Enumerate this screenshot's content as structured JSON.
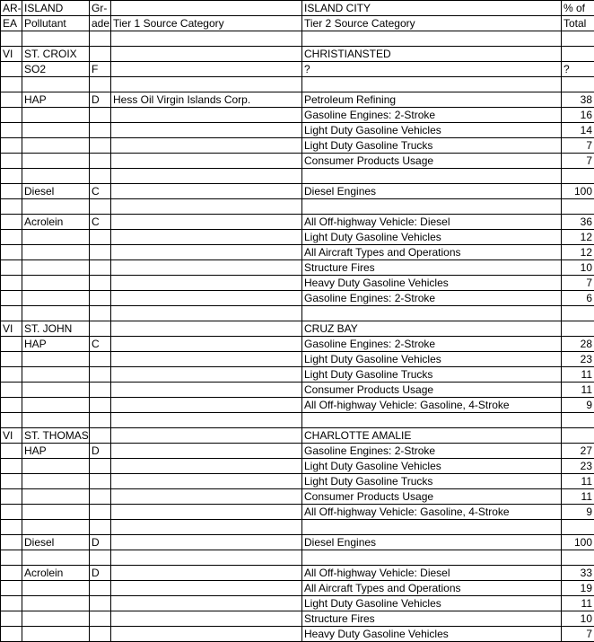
{
  "header1": {
    "ea": "AR-",
    "island": "ISLAND",
    "grade": "Gr-",
    "tier1": "",
    "tier2": "ISLAND CITY",
    "pct": "% of"
  },
  "header2": {
    "ea": "EA",
    "island": "Pollutant",
    "grade": "ade",
    "tier1": "Tier 1 Source Category",
    "tier2": "Tier 2 Source Category",
    "pct": "Total"
  },
  "rows": [
    {
      "ea": "",
      "isl": "",
      "gr": "",
      "t1": "",
      "t2": "",
      "p": ""
    },
    {
      "ea": "VI",
      "isl": "ST. CROIX",
      "gr": "",
      "t1": "",
      "t2": "CHRISTIANSTED",
      "p": ""
    },
    {
      "ea": "",
      "isl": "SO2",
      "gr": "F",
      "t1": "",
      "t2": "?",
      "p": "?",
      "pleft": true
    },
    {
      "ea": "",
      "isl": "",
      "gr": "",
      "t1": "",
      "t2": "",
      "p": ""
    },
    {
      "ea": "",
      "isl": "HAP",
      "gr": "D",
      "t1": "Hess Oil Virgin Islands Corp.",
      "t2": "Petroleum Refining",
      "p": "38"
    },
    {
      "ea": "",
      "isl": "",
      "gr": "",
      "t1": "",
      "t2": "Gasoline Engines: 2-Stroke",
      "p": "16"
    },
    {
      "ea": "",
      "isl": "",
      "gr": "",
      "t1": "",
      "t2": "Light Duty Gasoline Vehicles",
      "p": "14"
    },
    {
      "ea": "",
      "isl": "",
      "gr": "",
      "t1": "",
      "t2": "Light Duty Gasoline Trucks",
      "p": "7"
    },
    {
      "ea": "",
      "isl": "",
      "gr": "",
      "t1": "",
      "t2": "Consumer Products Usage",
      "p": "7"
    },
    {
      "ea": "",
      "isl": "",
      "gr": "",
      "t1": "",
      "t2": "",
      "p": ""
    },
    {
      "ea": "",
      "isl": "Diesel",
      "gr": "C",
      "t1": "",
      "t2": "Diesel Engines",
      "p": "100"
    },
    {
      "ea": "",
      "isl": "",
      "gr": "",
      "t1": "",
      "t2": "",
      "p": ""
    },
    {
      "ea": "",
      "isl": "Acrolein",
      "gr": "C",
      "t1": "",
      "t2": "All Off-highway Vehicle: Diesel",
      "p": "36"
    },
    {
      "ea": "",
      "isl": "",
      "gr": "",
      "t1": "",
      "t2": "Light Duty Gasoline Vehicles",
      "p": "12"
    },
    {
      "ea": "",
      "isl": "",
      "gr": "",
      "t1": "",
      "t2": "All Aircraft Types and Operations",
      "p": "12"
    },
    {
      "ea": "",
      "isl": "",
      "gr": "",
      "t1": "",
      "t2": "Structure Fires",
      "p": "10"
    },
    {
      "ea": "",
      "isl": "",
      "gr": "",
      "t1": "",
      "t2": "Heavy Duty Gasoline Vehicles",
      "p": "7"
    },
    {
      "ea": "",
      "isl": "",
      "gr": "",
      "t1": "",
      "t2": "Gasoline Engines: 2-Stroke",
      "p": "6"
    },
    {
      "ea": "",
      "isl": "",
      "gr": "",
      "t1": "",
      "t2": "",
      "p": ""
    },
    {
      "ea": "VI",
      "isl": "ST. JOHN",
      "gr": "",
      "t1": "",
      "t2": "CRUZ BAY",
      "p": ""
    },
    {
      "ea": "",
      "isl": "HAP",
      "gr": "C",
      "t1": "",
      "t2": "Gasoline Engines: 2-Stroke",
      "p": "28"
    },
    {
      "ea": "",
      "isl": "",
      "gr": "",
      "t1": "",
      "t2": "Light Duty Gasoline Vehicles",
      "p": "23"
    },
    {
      "ea": "",
      "isl": "",
      "gr": "",
      "t1": "",
      "t2": "Light Duty Gasoline Trucks",
      "p": "11"
    },
    {
      "ea": "",
      "isl": "",
      "gr": "",
      "t1": "",
      "t2": "Consumer Products Usage",
      "p": "11"
    },
    {
      "ea": "",
      "isl": "",
      "gr": "",
      "t1": "",
      "t2": "All Off-highway Vehicle: Gasoline, 4-Stroke",
      "p": "9"
    },
    {
      "ea": "",
      "isl": "",
      "gr": "",
      "t1": "",
      "t2": "",
      "p": ""
    },
    {
      "ea": "VI",
      "isl": "ST. THOMAS",
      "gr": "",
      "t1": "",
      "t2": "CHARLOTTE AMALIE",
      "p": ""
    },
    {
      "ea": "",
      "isl": "HAP",
      "gr": "D",
      "t1": "",
      "t2": "Gasoline Engines: 2-Stroke",
      "p": "27"
    },
    {
      "ea": "",
      "isl": "",
      "gr": "",
      "t1": "",
      "t2": "Light Duty Gasoline Vehicles",
      "p": "23"
    },
    {
      "ea": "",
      "isl": "",
      "gr": "",
      "t1": "",
      "t2": "Light Duty Gasoline Trucks",
      "p": "11"
    },
    {
      "ea": "",
      "isl": "",
      "gr": "",
      "t1": "",
      "t2": "Consumer Products Usage",
      "p": "11"
    },
    {
      "ea": "",
      "isl": "",
      "gr": "",
      "t1": "",
      "t2": "All Off-highway Vehicle: Gasoline, 4-Stroke",
      "p": "9"
    },
    {
      "ea": "",
      "isl": "",
      "gr": "",
      "t1": "",
      "t2": "",
      "p": ""
    },
    {
      "ea": "",
      "isl": "Diesel",
      "gr": "D",
      "t1": "",
      "t2": "Diesel Engines",
      "p": "100"
    },
    {
      "ea": "",
      "isl": "",
      "gr": "",
      "t1": "",
      "t2": "",
      "p": ""
    },
    {
      "ea": "",
      "isl": "Acrolein",
      "gr": "D",
      "t1": "",
      "t2": "All Off-highway Vehicle: Diesel",
      "p": "33"
    },
    {
      "ea": "",
      "isl": "",
      "gr": "",
      "t1": "",
      "t2": "All Aircraft Types and Operations",
      "p": "19"
    },
    {
      "ea": "",
      "isl": "",
      "gr": "",
      "t1": "",
      "t2": "Light Duty Gasoline Vehicles",
      "p": "11"
    },
    {
      "ea": "",
      "isl": "",
      "gr": "",
      "t1": "",
      "t2": "Structure Fires",
      "p": "10"
    },
    {
      "ea": "",
      "isl": "",
      "gr": "",
      "t1": "",
      "t2": "Heavy Duty Gasoline Vehicles",
      "p": "7"
    }
  ]
}
